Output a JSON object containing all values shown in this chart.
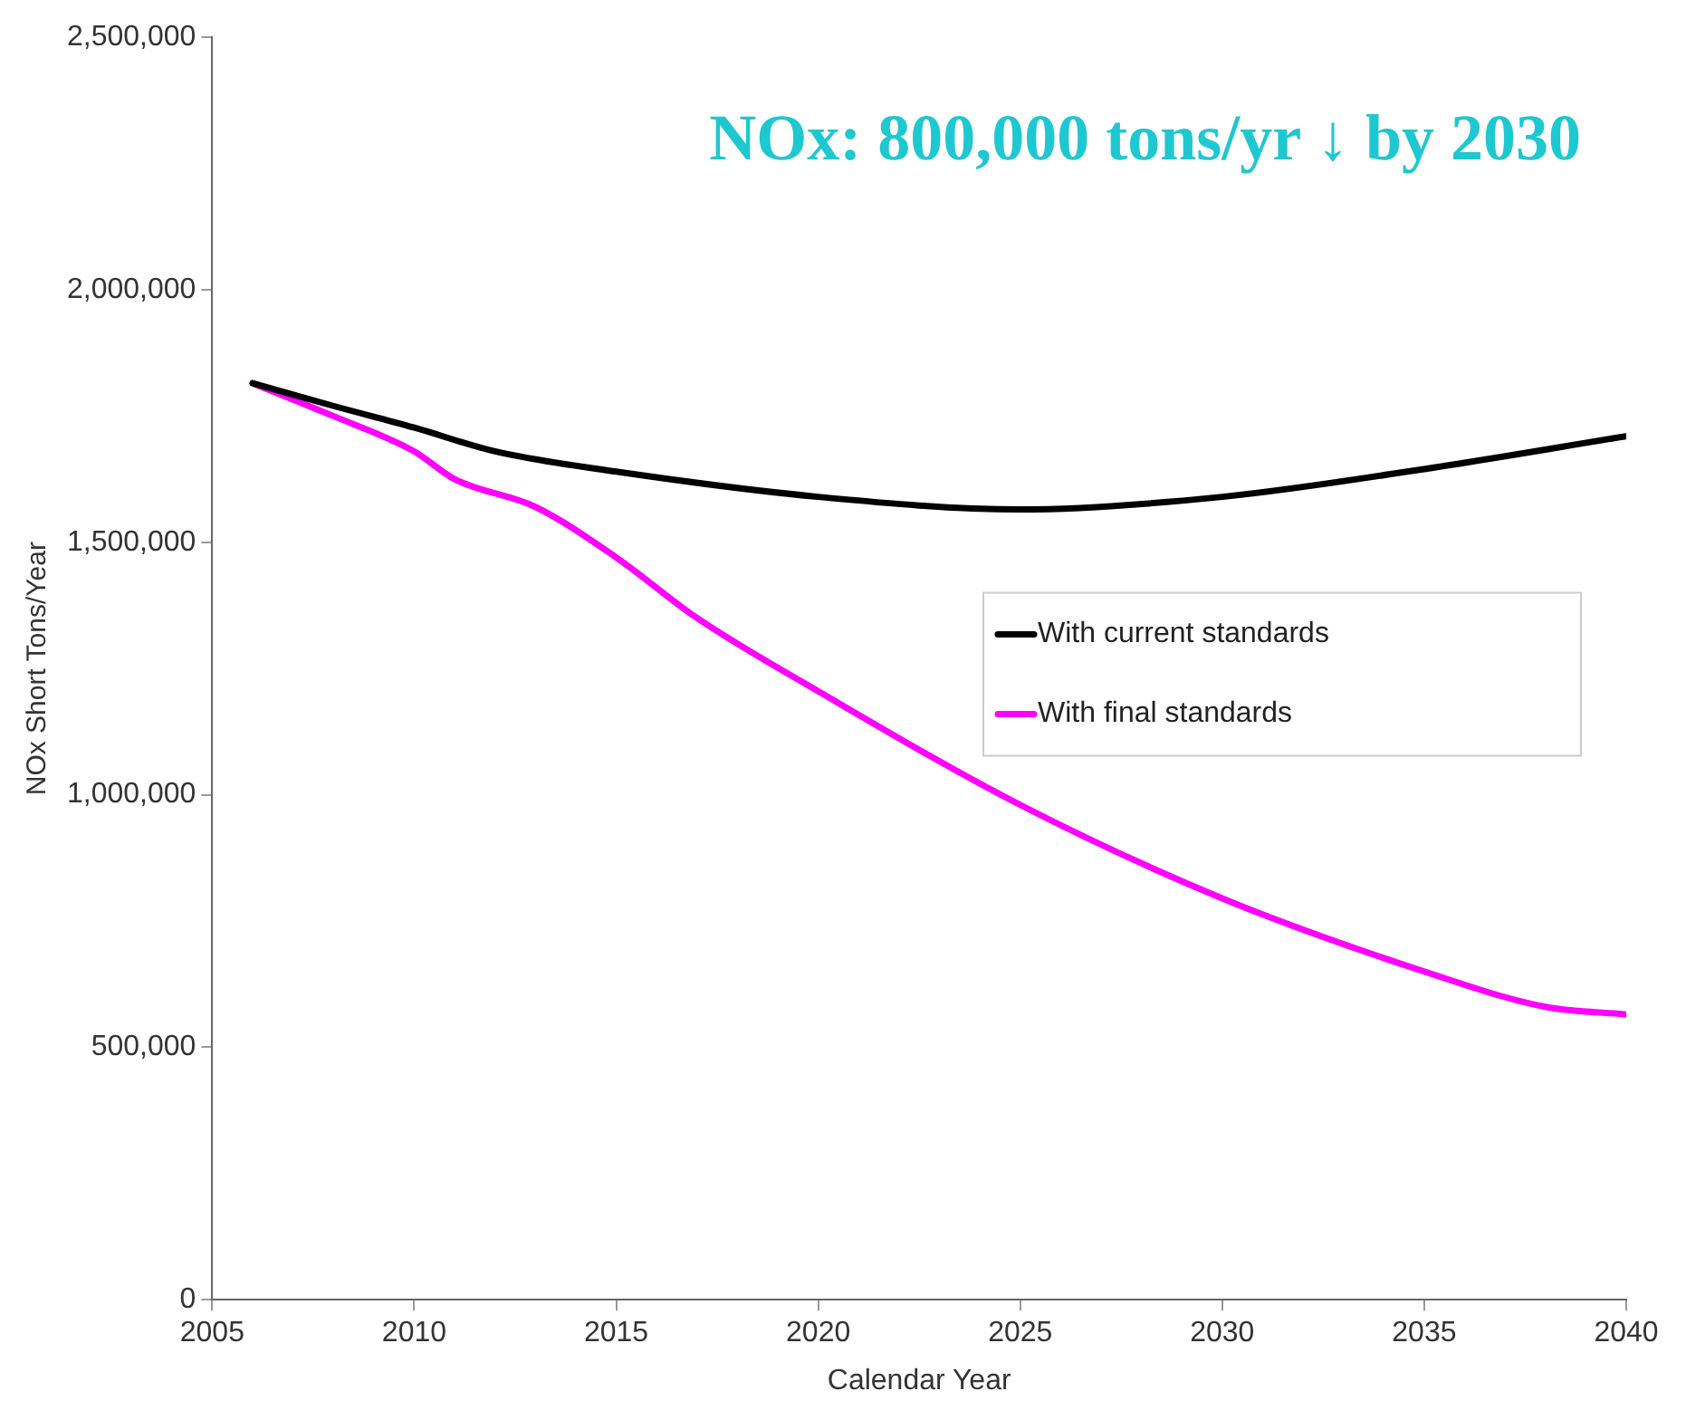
{
  "chart_data": {
    "type": "line",
    "xlabel": "Calendar Year",
    "ylabel": "NOx Short Tons/Year",
    "annotations": [
      "NOx: 800,000 tons/yr ↓ by 2030"
    ],
    "xlim": [
      2005,
      2040
    ],
    "xticks": [
      2005,
      2010,
      2015,
      2020,
      2025,
      2030,
      2035,
      2040
    ],
    "ylim": [
      0,
      2500000
    ],
    "yticks": [
      {
        "value": 0,
        "label": "0"
      },
      {
        "value": 500000,
        "label": "500,000"
      },
      {
        "value": 1000000,
        "label": "1,000,000"
      },
      {
        "value": 1500000,
        "label": "1,500,000"
      },
      {
        "value": 2000000,
        "label": "2,000,000"
      },
      {
        "value": 2500000,
        "label": "2,500,000"
      }
    ],
    "legend": "right",
    "marker": "none",
    "line_style": "solid",
    "series": [
      {
        "name": "With current standards",
        "color": "#000000",
        "x": [
          2006,
          2008,
          2010,
          2012,
          2015,
          2020,
          2025,
          2030,
          2035,
          2040
        ],
        "values": [
          1815000,
          1770000,
          1727000,
          1680000,
          1640000,
          1590000,
          1565000,
          1590000,
          1645000,
          1710000
        ]
      },
      {
        "name": "With final standards",
        "color": "#ff00ff",
        "x": [
          2006,
          2008,
          2010,
          2011,
          2013,
          2015,
          2017,
          2020,
          2025,
          2030,
          2035,
          2038,
          2040
        ],
        "values": [
          1815000,
          1750000,
          1680000,
          1625000,
          1570000,
          1470000,
          1350000,
          1205000,
          980000,
          795000,
          650000,
          580000,
          565000
        ]
      }
    ]
  }
}
